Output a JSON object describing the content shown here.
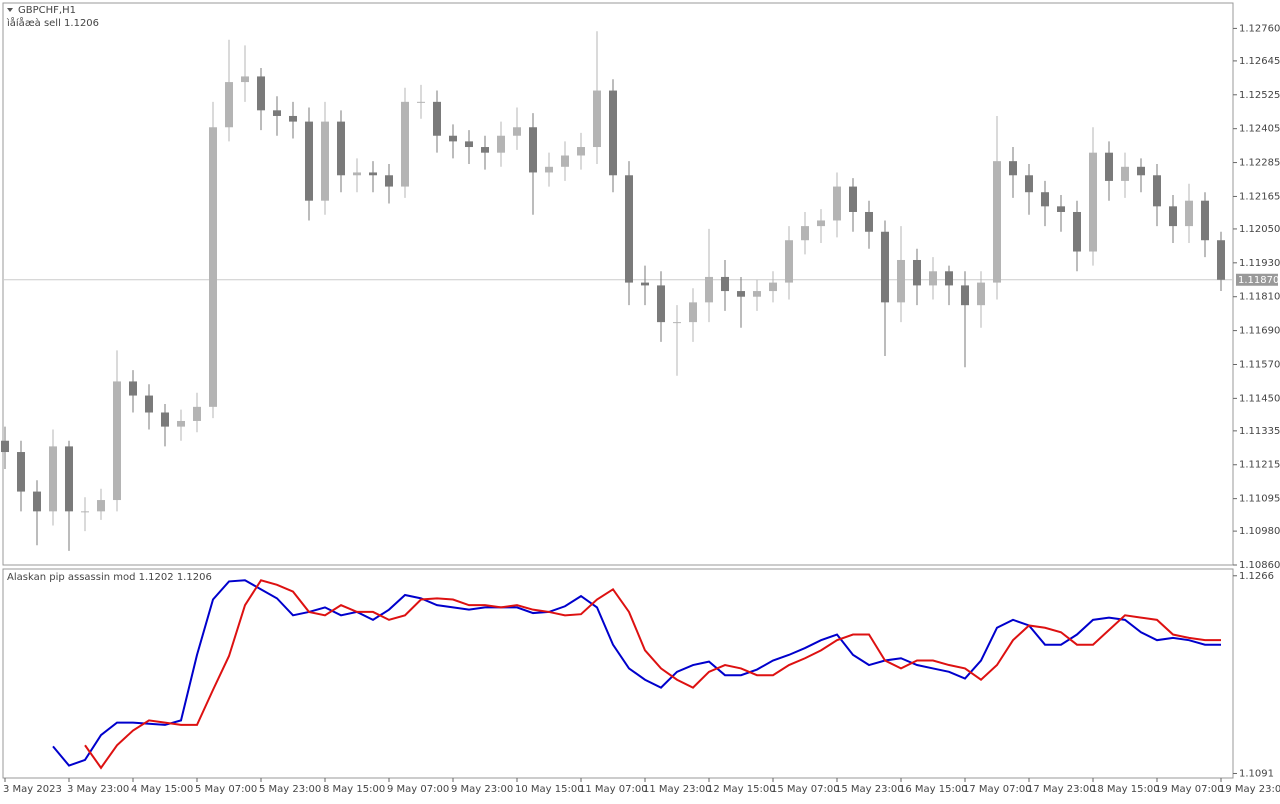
{
  "chart_data": [
    {
      "type": "candlestick",
      "title": "GBPCHF,H1",
      "subtitle": "ìåíåæà sell 1.1206",
      "categories": [
        "3 May 2023",
        null,
        null,
        null,
        "3 May 23:00",
        null,
        null,
        null,
        "4 May 15:00",
        null,
        null,
        null,
        "5 May 07:00",
        null,
        null,
        null,
        "5 May 23:00",
        null,
        null,
        null,
        "8 May 15:00",
        null,
        null,
        null,
        "9 May 07:00",
        null,
        null,
        null,
        "9 May 23:00",
        null,
        null,
        null,
        "10 May 15:00",
        null,
        null,
        null,
        "11 May 07:00",
        null,
        null,
        null,
        "11 May 23:00",
        null,
        null,
        null,
        "12 May 15:00",
        null,
        null,
        null,
        "15 May 07:00",
        null,
        null,
        null,
        "15 May 23:00",
        null,
        null,
        null,
        "16 May 15:00",
        null,
        null,
        null,
        "17 May 07:00",
        null,
        null,
        null,
        "17 May 23:00",
        null,
        null,
        null,
        "18 May 15:00",
        null,
        null,
        null,
        "19 May 07:00",
        null,
        null,
        null,
        "19 May 23:00"
      ],
      "open": [
        1.113,
        1.1126,
        1.1112,
        1.1105,
        1.1128,
        1.1105,
        1.1105,
        1.1109,
        1.1151,
        1.1146,
        1.114,
        1.1135,
        1.1137,
        1.1142,
        1.1241,
        1.1257,
        1.1259,
        1.1247,
        1.1245,
        1.1243,
        1.1215,
        1.1243,
        1.1224,
        1.1225,
        1.1224,
        1.122,
        1.125,
        1.125,
        1.1238,
        1.1236,
        1.1234,
        1.1232,
        1.1238,
        1.1241,
        1.1225,
        1.1227,
        1.1231,
        1.1234,
        1.1254,
        1.1224,
        1.1186,
        1.1185,
        1.1172,
        1.1172,
        1.1179,
        1.1188,
        1.1183,
        1.1181,
        1.1183,
        1.1186,
        1.1201,
        1.1206,
        1.1208,
        1.122,
        1.1211,
        1.1204,
        1.1179,
        1.1194,
        1.1185,
        1.119,
        1.1185,
        1.1178,
        1.1186,
        1.1229,
        1.1224,
        1.1218,
        1.1213,
        1.1211,
        1.1197,
        1.1232,
        1.1222,
        1.1227,
        1.1224,
        1.1213,
        1.1206,
        1.1215,
        1.1201
      ],
      "high": [
        1.1135,
        1.113,
        1.1116,
        1.1134,
        1.113,
        1.111,
        1.1113,
        1.1162,
        1.1155,
        1.115,
        1.1143,
        1.1141,
        1.1147,
        1.125,
        1.1272,
        1.127,
        1.1262,
        1.1252,
        1.125,
        1.1248,
        1.125,
        1.1247,
        1.123,
        1.1229,
        1.1228,
        1.1255,
        1.1256,
        1.1254,
        1.1242,
        1.124,
        1.1238,
        1.1243,
        1.1248,
        1.1246,
        1.1232,
        1.1236,
        1.1239,
        1.1275,
        1.1258,
        1.1229,
        1.1192,
        1.119,
        1.1178,
        1.1184,
        1.1205,
        1.1194,
        1.1188,
        1.1187,
        1.119,
        1.1206,
        1.1211,
        1.1212,
        1.1225,
        1.1223,
        1.1215,
        1.1208,
        1.1206,
        1.1198,
        1.1195,
        1.1192,
        1.119,
        1.119,
        1.1245,
        1.1234,
        1.1228,
        1.1222,
        1.1217,
        1.1215,
        1.1241,
        1.1236,
        1.1232,
        1.123,
        1.1228,
        1.1217,
        1.1221,
        1.1218,
        1.1204
      ],
      "low": [
        1.112,
        1.1105,
        1.1093,
        1.11,
        1.1091,
        1.1098,
        1.1102,
        1.1105,
        1.114,
        1.1134,
        1.1128,
        1.113,
        1.1133,
        1.1138,
        1.1236,
        1.125,
        1.124,
        1.1238,
        1.1237,
        1.1208,
        1.121,
        1.1218,
        1.1218,
        1.1218,
        1.1214,
        1.1216,
        1.1244,
        1.1232,
        1.123,
        1.1228,
        1.1226,
        1.1227,
        1.1233,
        1.121,
        1.122,
        1.1222,
        1.1226,
        1.1228,
        1.1218,
        1.1178,
        1.1178,
        1.1165,
        1.1153,
        1.1165,
        1.1172,
        1.1176,
        1.117,
        1.1176,
        1.1179,
        1.118,
        1.1196,
        1.12,
        1.1202,
        1.1204,
        1.1198,
        1.116,
        1.1172,
        1.1178,
        1.118,
        1.1178,
        1.1156,
        1.117,
        1.118,
        1.1216,
        1.121,
        1.1206,
        1.1204,
        1.119,
        1.1192,
        1.1215,
        1.1216,
        1.1218,
        1.1206,
        1.12,
        1.12,
        1.1195,
        1.1183
      ],
      "close": [
        1.1126,
        1.1112,
        1.1105,
        1.1128,
        1.1105,
        1.1105,
        1.1109,
        1.1151,
        1.1146,
        1.114,
        1.1135,
        1.1137,
        1.1142,
        1.1241,
        1.1257,
        1.1259,
        1.1247,
        1.1245,
        1.1243,
        1.1215,
        1.1243,
        1.1224,
        1.1225,
        1.1224,
        1.122,
        1.125,
        1.125,
        1.1238,
        1.1236,
        1.1234,
        1.1232,
        1.1238,
        1.1241,
        1.1225,
        1.1227,
        1.1231,
        1.1234,
        1.1254,
        1.1224,
        1.1186,
        1.1185,
        1.1172,
        1.1172,
        1.1179,
        1.1188,
        1.1183,
        1.1181,
        1.1183,
        1.1186,
        1.1201,
        1.1206,
        1.1208,
        1.122,
        1.1211,
        1.1204,
        1.1179,
        1.1194,
        1.1185,
        1.119,
        1.1185,
        1.1178,
        1.1186,
        1.1229,
        1.1224,
        1.1218,
        1.1213,
        1.1211,
        1.1197,
        1.1232,
        1.1222,
        1.1227,
        1.1224,
        1.1213,
        1.1206,
        1.1215,
        1.1201,
        1.1187
      ],
      "up_color": "#b4b4b4",
      "down_color": "#7a7a7a",
      "ylim": [
        1.1086,
        1.1285
      ],
      "yticks": [
        {
          "value": 1.1276,
          "label": "1.12760"
        },
        {
          "value": 1.12645,
          "label": "1.12645"
        },
        {
          "value": 1.12525,
          "label": "1.12525"
        },
        {
          "value": 1.12405,
          "label": "1.12405"
        },
        {
          "value": 1.12285,
          "label": "1.12285"
        },
        {
          "value": 1.12165,
          "label": "1.12165"
        },
        {
          "value": 1.1205,
          "label": "1.12050"
        },
        {
          "value": 1.1193,
          "label": "1.11930"
        },
        {
          "value": 1.1181,
          "label": "1.11810"
        },
        {
          "value": 1.1169,
          "label": "1.11690"
        },
        {
          "value": 1.1157,
          "label": "1.11570"
        },
        {
          "value": 1.1145,
          "label": "1.11450"
        },
        {
          "value": 1.11335,
          "label": "1.11335"
        },
        {
          "value": 1.11215,
          "label": "1.11215"
        },
        {
          "value": 1.11095,
          "label": "1.11095"
        },
        {
          "value": 1.1098,
          "label": "1.10980"
        },
        {
          "value": 1.1086,
          "label": "1.10860"
        }
      ],
      "price_line": {
        "value": 1.1187,
        "label": "1.11870"
      }
    },
    {
      "type": "line",
      "title": "Alaskan pip assassin mod 1.1202 1.1206",
      "series": [
        {
          "color": "#0000cc",
          "values": [
            null,
            null,
            null,
            1.1115,
            1.1098,
            1.1103,
            1.1125,
            1.1136,
            1.1136,
            1.1135,
            1.1134,
            1.1138,
            1.1196,
            1.1245,
            1.1261,
            1.1262,
            1.1254,
            1.1246,
            1.1231,
            1.1234,
            1.1238,
            1.1231,
            1.1234,
            1.1227,
            1.1236,
            1.1249,
            1.1246,
            1.124,
            1.1238,
            1.1236,
            1.1238,
            1.1238,
            1.1238,
            1.1233,
            1.1234,
            1.1239,
            1.1248,
            1.1238,
            1.1205,
            1.1184,
            1.1174,
            1.1167,
            1.1181,
            1.1187,
            1.119,
            1.1178,
            1.1178,
            1.1183,
            1.1191,
            1.1196,
            1.1202,
            1.1209,
            1.1214,
            1.1196,
            1.1187,
            1.1191,
            1.1193,
            1.1187,
            1.1184,
            1.1181,
            1.1175,
            1.1191,
            1.122,
            1.1227,
            1.1222,
            1.1205,
            1.1205,
            1.1214,
            1.1227,
            1.1229,
            1.1227,
            1.1216,
            1.1209,
            1.1211,
            1.1209,
            1.1205,
            1.1205
          ]
        },
        {
          "color": "#dd1111",
          "values": [
            null,
            null,
            null,
            null,
            null,
            1.1116,
            1.1096,
            1.1116,
            1.1129,
            1.1138,
            1.1136,
            1.1134,
            1.1134,
            1.1165,
            1.1195,
            1.124,
            1.1262,
            1.1258,
            1.1252,
            1.1234,
            1.1231,
            1.124,
            1.1234,
            1.1234,
            1.1227,
            1.1231,
            1.1245,
            1.1246,
            1.1245,
            1.124,
            1.124,
            1.1238,
            1.124,
            1.1236,
            1.1234,
            1.1231,
            1.1232,
            1.1245,
            1.1254,
            1.1234,
            1.12,
            1.1184,
            1.1174,
            1.1167,
            1.1181,
            1.1187,
            1.1184,
            1.1178,
            1.1178,
            1.1187,
            1.1193,
            1.12,
            1.1209,
            1.1214,
            1.1214,
            1.1191,
            1.1184,
            1.1191,
            1.1191,
            1.1187,
            1.1184,
            1.1174,
            1.1187,
            1.1209,
            1.1222,
            1.122,
            1.1216,
            1.1205,
            1.1205,
            1.1218,
            1.1231,
            1.1229,
            1.1227,
            1.1214,
            1.1211,
            1.1209,
            1.1209
          ]
        }
      ],
      "ylim": [
        1.1087,
        1.1272
      ],
      "yticks": [
        1.1266,
        1.1091
      ]
    }
  ]
}
